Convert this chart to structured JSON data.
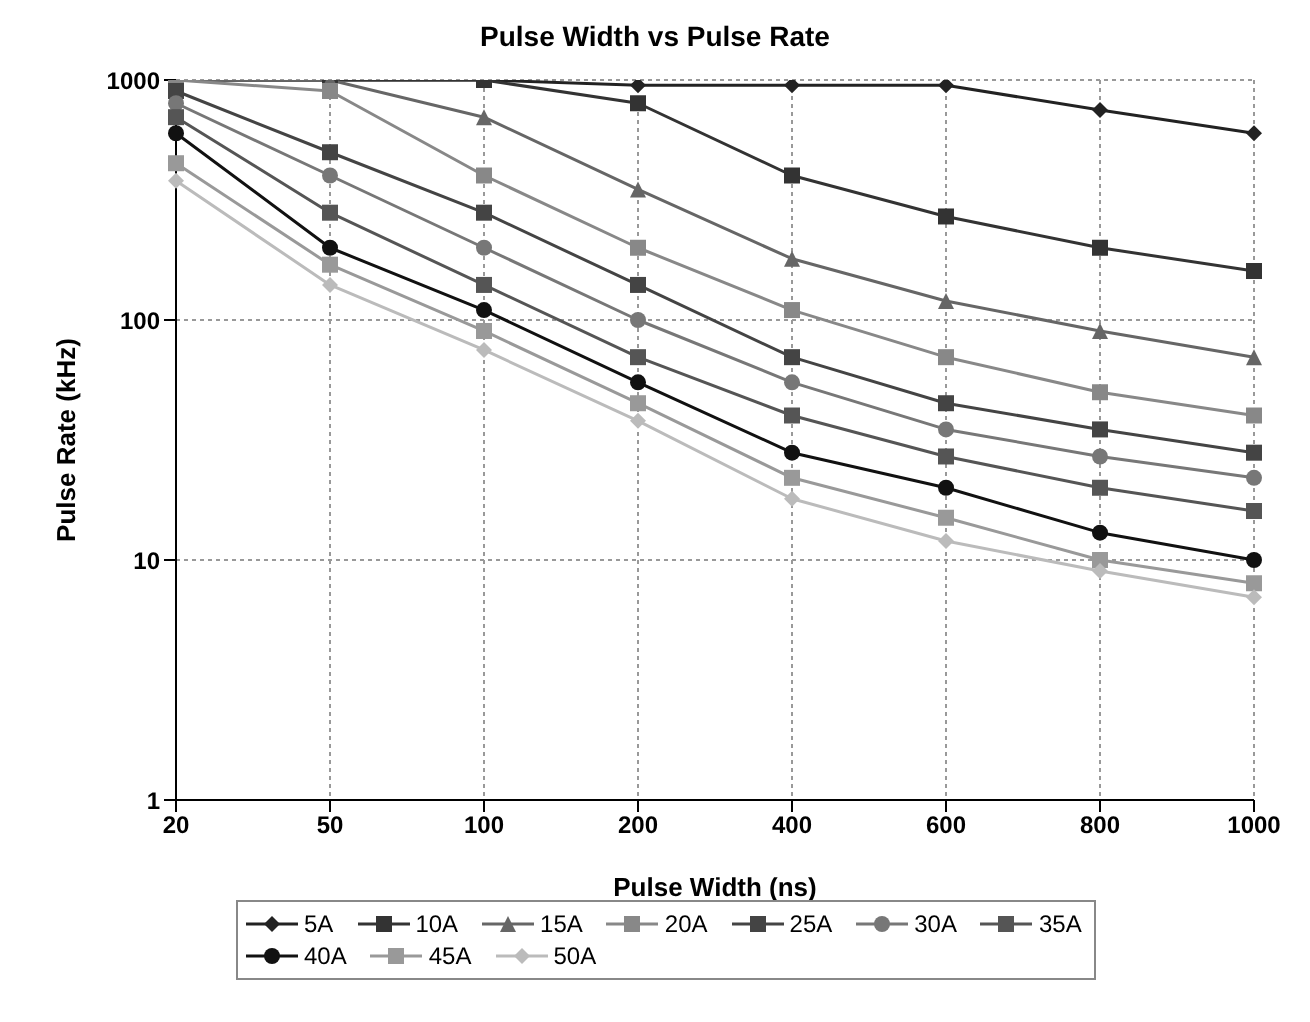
{
  "chart_data": {
    "type": "line",
    "title": "Pulse Width vs Pulse Rate",
    "xlabel": "Pulse Width (ns)",
    "ylabel": "Pulse Rate (kHz)",
    "categories": [
      "20",
      "50",
      "100",
      "200",
      "400",
      "600",
      "800",
      "1000"
    ],
    "log": "y",
    "ylim": [
      1,
      1000
    ],
    "yticks": [
      1,
      10,
      100,
      1000
    ],
    "grid": true,
    "legend": "bottom",
    "series": [
      {
        "name": "5A",
        "color": "#222222",
        "marker": "diamond",
        "values": [
          1000,
          1000,
          1000,
          950,
          950,
          950,
          750,
          600
        ]
      },
      {
        "name": "10A",
        "color": "#333333",
        "marker": "square",
        "values": [
          1000,
          1000,
          1000,
          800,
          400,
          270,
          200,
          160
        ]
      },
      {
        "name": "15A",
        "color": "#666666",
        "marker": "triangle",
        "values": [
          1000,
          1000,
          700,
          350,
          180,
          120,
          90,
          70
        ]
      },
      {
        "name": "20A",
        "color": "#888888",
        "marker": "square",
        "values": [
          1000,
          900,
          400,
          200,
          110,
          70,
          50,
          40
        ]
      },
      {
        "name": "25A",
        "color": "#444444",
        "marker": "square",
        "values": [
          900,
          500,
          280,
          140,
          70,
          45,
          35,
          28
        ]
      },
      {
        "name": "30A",
        "color": "#777777",
        "marker": "circle",
        "values": [
          800,
          400,
          200,
          100,
          55,
          35,
          27,
          22
        ]
      },
      {
        "name": "35A",
        "color": "#555555",
        "marker": "square",
        "values": [
          700,
          280,
          140,
          70,
          40,
          27,
          20,
          16
        ]
      },
      {
        "name": "40A",
        "color": "#111111",
        "marker": "circle",
        "values": [
          600,
          200,
          110,
          55,
          28,
          20,
          13,
          10
        ]
      },
      {
        "name": "45A",
        "color": "#999999",
        "marker": "square",
        "values": [
          450,
          170,
          90,
          45,
          22,
          15,
          10,
          8
        ]
      },
      {
        "name": "50A",
        "color": "#bbbbbb",
        "marker": "diamond",
        "values": [
          380,
          140,
          75,
          38,
          18,
          12,
          9,
          7
        ]
      }
    ]
  }
}
